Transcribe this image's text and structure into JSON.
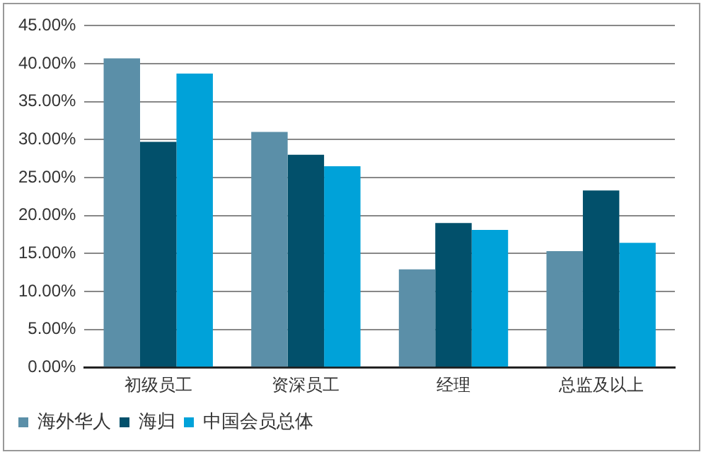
{
  "chart_data": {
    "type": "bar",
    "categories": [
      "初级员工",
      "资深员工",
      "经理",
      "总监及以上"
    ],
    "series": [
      {
        "name": "海外华人",
        "color": "#5b8fa8",
        "values": [
          40.7,
          31.0,
          12.9,
          15.3
        ]
      },
      {
        "name": "海归",
        "color": "#02506b",
        "values": [
          29.7,
          28.0,
          19.0,
          23.3
        ]
      },
      {
        "name": "中国会员总体",
        "color": "#00a2d9",
        "values": [
          38.7,
          26.5,
          18.1,
          16.4
        ]
      }
    ],
    "ylim": [
      0,
      45
    ],
    "yticks": [
      {
        "value": 0,
        "label": "0.00%"
      },
      {
        "value": 5,
        "label": "5.00%"
      },
      {
        "value": 10,
        "label": "10.00%"
      },
      {
        "value": 15,
        "label": "15.00%"
      },
      {
        "value": 20,
        "label": "20.00%"
      },
      {
        "value": 25,
        "label": "25.00%"
      },
      {
        "value": 30,
        "label": "30.00%"
      },
      {
        "value": 35,
        "label": "35.00%"
      },
      {
        "value": 40,
        "label": "40.00%"
      },
      {
        "value": 45,
        "label": "45.00%"
      }
    ],
    "grid": "y",
    "legend": "bottom left"
  }
}
